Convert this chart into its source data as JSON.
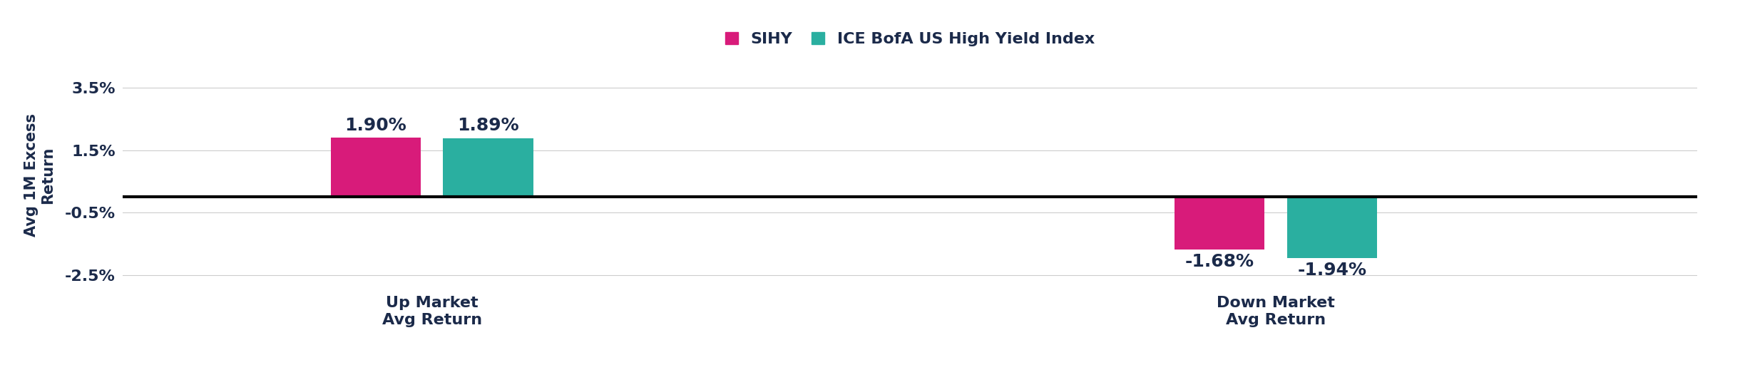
{
  "categories": [
    "Up Market\nAvg Return",
    "Down Market\nAvg Return"
  ],
  "sihy_values": [
    1.9,
    -1.68
  ],
  "index_values": [
    1.89,
    -1.94
  ],
  "sihy_labels": [
    "1.90%",
    "-1.68%"
  ],
  "index_labels": [
    "1.89%",
    "-1.94%"
  ],
  "sihy_color": "#D81B7A",
  "index_color": "#2AAFA0",
  "ylabel": "Avg 1M Excess\nReturn",
  "ylim": [
    -2.8,
    4.2
  ],
  "yticks": [
    -2.5,
    -0.5,
    1.5,
    3.5
  ],
  "ytick_labels": [
    "-2.5%",
    "-0.5%",
    "1.5%",
    "3.5%"
  ],
  "legend_sihy": "SIHY",
  "legend_index": "ICE BofA US High Yield Index",
  "bar_width": 0.32,
  "background_color": "#ffffff",
  "text_color": "#1B2A4A",
  "fontsize_labels": 18,
  "fontsize_yticks": 16,
  "fontsize_xticks": 16,
  "fontsize_ylabel": 15,
  "fontsize_legend": 16,
  "group_centers": [
    1.5,
    4.5
  ],
  "xlim": [
    0.4,
    6.0
  ]
}
